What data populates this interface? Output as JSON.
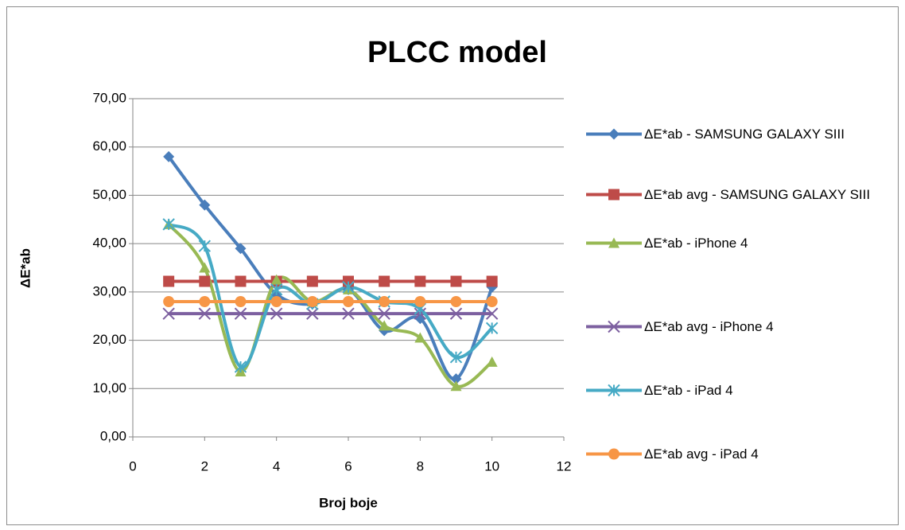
{
  "chart_data": {
    "type": "line",
    "title": "PLCC model",
    "x_label": "Broj boje",
    "y_label": "ΔE*ab",
    "xlim": [
      0,
      12
    ],
    "xticks": [
      0,
      2,
      4,
      6,
      8,
      10,
      12
    ],
    "ylim": [
      0,
      70
    ],
    "yticks": [
      {
        "value": 0,
        "label": "0,00"
      },
      {
        "value": 10,
        "label": "10,00"
      },
      {
        "value": 20,
        "label": "20,00"
      },
      {
        "value": 30,
        "label": "30,00"
      },
      {
        "value": 40,
        "label": "40,00"
      },
      {
        "value": 50,
        "label": "50,00"
      },
      {
        "value": 60,
        "label": "60,00"
      },
      {
        "value": 70,
        "label": "70,00"
      }
    ],
    "grid": true,
    "smooth": true,
    "legend": "right",
    "x": [
      1,
      2,
      3,
      4,
      5,
      6,
      7,
      8,
      9,
      10
    ],
    "series": [
      {
        "name": "ΔE*ab - SAMSUNG GALAXY SIII",
        "color": "#4a7ebb",
        "marker": "diamond",
        "values": [
          58,
          48,
          39,
          29.5,
          27.5,
          30.5,
          22,
          24.5,
          12,
          31
        ]
      },
      {
        "name": "ΔE*ab avg  - SAMSUNG GALAXY SIII",
        "color": "#be4b48",
        "marker": "square",
        "values": [
          32.2,
          32.2,
          32.2,
          32.2,
          32.2,
          32.2,
          32.2,
          32.2,
          32.2,
          32.2
        ]
      },
      {
        "name": "ΔE*ab - iPhone 4",
        "color": "#98b954",
        "marker": "triangle",
        "values": [
          44,
          35,
          13.5,
          32.5,
          28,
          30.5,
          23,
          20.5,
          10.5,
          15.5
        ]
      },
      {
        "name": "ΔE*ab avg  - iPhone 4",
        "color": "#7d60a0",
        "marker": "x",
        "values": [
          25.5,
          25.5,
          25.5,
          25.5,
          25.5,
          25.5,
          25.5,
          25.5,
          25.5,
          25.5
        ]
      },
      {
        "name": "ΔE*ab - iPad 4",
        "color": "#46aac5",
        "marker": "star",
        "values": [
          44,
          39.5,
          14.5,
          30.5,
          27.5,
          31,
          28,
          26.5,
          16.5,
          22.5
        ]
      },
      {
        "name": "ΔE*ab avg  - iPad 4",
        "color": "#f79646",
        "marker": "circle",
        "values": [
          28,
          28,
          28,
          28,
          28,
          28,
          28,
          28,
          28,
          28
        ]
      }
    ]
  }
}
